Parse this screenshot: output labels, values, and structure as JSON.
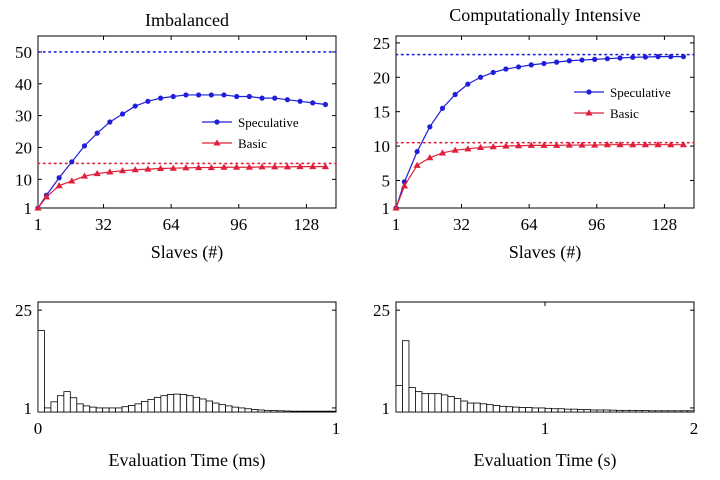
{
  "chart_data": [
    {
      "type": "line",
      "title": "Imbalanced",
      "xlabel": "Slaves (#)",
      "ylabel": "",
      "xlim": [
        1,
        142
      ],
      "ylim": [
        1,
        55
      ],
      "x_ticks": [
        1,
        32,
        64,
        96,
        128
      ],
      "y_ticks": [
        1,
        10,
        20,
        30,
        40,
        50
      ],
      "legend_position": "center-right",
      "series": [
        {
          "name": "Speculative",
          "color": "#1f1fd8",
          "marker": "circle",
          "x": [
            1,
            5,
            11,
            17,
            23,
            29,
            35,
            41,
            47,
            53,
            59,
            65,
            71,
            77,
            83,
            89,
            95,
            101,
            107,
            113,
            119,
            125,
            131,
            137
          ],
          "y": [
            1,
            5,
            10.5,
            15.5,
            20.5,
            24.5,
            28,
            30.5,
            33,
            34.5,
            35.5,
            36,
            36.5,
            36.5,
            36.5,
            36.5,
            36,
            36,
            35.5,
            35.5,
            35,
            34.5,
            34,
            33.5
          ]
        },
        {
          "name": "Basic",
          "color": "#e0203a",
          "marker": "triangle",
          "x": [
            1,
            5,
            11,
            17,
            23,
            29,
            35,
            41,
            47,
            53,
            59,
            65,
            71,
            77,
            83,
            89,
            95,
            101,
            107,
            113,
            119,
            125,
            131,
            137
          ],
          "y": [
            1,
            4.5,
            8,
            9.5,
            11,
            11.8,
            12.3,
            12.7,
            13,
            13.2,
            13.4,
            13.5,
            13.6,
            13.7,
            13.7,
            13.8,
            13.8,
            13.8,
            13.9,
            13.9,
            13.9,
            14,
            14,
            14
          ]
        }
      ],
      "reference_lines": [
        {
          "y": 50,
          "color": "#1f1fd8"
        },
        {
          "y": 15,
          "color": "#e0203a"
        }
      ]
    },
    {
      "type": "line",
      "title": "Computationally Intensive",
      "xlabel": "Slaves (#)",
      "ylabel": "",
      "xlim": [
        1,
        142
      ],
      "ylim": [
        1,
        26
      ],
      "x_ticks": [
        1,
        32,
        64,
        96,
        128
      ],
      "y_ticks": [
        1,
        5,
        10,
        15,
        20,
        25
      ],
      "legend_position": "center-right",
      "series": [
        {
          "name": "Speculative",
          "color": "#1f1fd8",
          "marker": "circle",
          "x": [
            1,
            5,
            11,
            17,
            23,
            29,
            35,
            41,
            47,
            53,
            59,
            65,
            71,
            77,
            83,
            89,
            95,
            101,
            107,
            113,
            119,
            125,
            131,
            137
          ],
          "y": [
            1,
            4.8,
            9.2,
            12.8,
            15.5,
            17.5,
            19,
            20,
            20.7,
            21.2,
            21.5,
            21.8,
            22,
            22.2,
            22.4,
            22.5,
            22.6,
            22.7,
            22.8,
            22.9,
            22.95,
            23,
            23,
            23
          ]
        },
        {
          "name": "Basic",
          "color": "#e0203a",
          "marker": "triangle",
          "x": [
            1,
            5,
            11,
            17,
            23,
            29,
            35,
            41,
            47,
            53,
            59,
            65,
            71,
            77,
            83,
            89,
            95,
            101,
            107,
            113,
            119,
            125,
            131,
            137
          ],
          "y": [
            1,
            4.2,
            7.2,
            8.3,
            9,
            9.4,
            9.6,
            9.8,
            9.9,
            10,
            10.05,
            10.1,
            10.1,
            10.1,
            10.15,
            10.15,
            10.15,
            10.2,
            10.2,
            10.2,
            10.2,
            10.2,
            10.2,
            10.2
          ]
        }
      ],
      "reference_lines": [
        {
          "y": 23.3,
          "color": "#1f1fd8"
        },
        {
          "y": 10.5,
          "color": "#e0203a"
        }
      ]
    },
    {
      "type": "bar",
      "title": "",
      "xlabel": "Evaluation Time (ms)",
      "ylabel": "",
      "xlim": [
        0,
        1
      ],
      "ylim": [
        0,
        27
      ],
      "x_ticks": [
        0,
        1
      ],
      "y_ticks": [
        1,
        25
      ],
      "bin_width": 0.0217,
      "values": [
        20,
        1,
        2.5,
        4,
        5,
        3.5,
        2,
        1.5,
        1.2,
        1,
        1,
        1,
        1,
        1.3,
        1.6,
        2,
        2.6,
        3.1,
        3.6,
        4,
        4.3,
        4.4,
        4.3,
        4,
        3.6,
        3.2,
        2.7,
        2.2,
        1.8,
        1.5,
        1.2,
        1,
        0.8,
        0.6,
        0.5,
        0.4,
        0.35,
        0.3,
        0.25,
        0.2,
        0.2,
        0.2,
        0.2,
        0.2,
        0.2,
        0.2
      ]
    },
    {
      "type": "bar",
      "title": "",
      "xlabel": "Evaluation Time (s)",
      "ylabel": "",
      "xlim": [
        0,
        2
      ],
      "ylim": [
        0,
        27
      ],
      "x_ticks": [
        1,
        2
      ],
      "y_ticks": [
        1,
        25
      ],
      "bin_width": 0.0435,
      "values": [
        6.5,
        17.5,
        6,
        5,
        4.5,
        4.5,
        4.5,
        4.2,
        3.8,
        3.3,
        2.7,
        2.2,
        2.2,
        2,
        1.8,
        1.6,
        1.4,
        1.3,
        1.2,
        1.1,
        1.1,
        1,
        1,
        0.9,
        0.8,
        0.8,
        0.7,
        0.7,
        0.6,
        0.6,
        0.5,
        0.5,
        0.5,
        0.45,
        0.4,
        0.4,
        0.4,
        0.35,
        0.35,
        0.3,
        0.3,
        0.3,
        0.3,
        0.3,
        0.3,
        0.3
      ]
    }
  ]
}
